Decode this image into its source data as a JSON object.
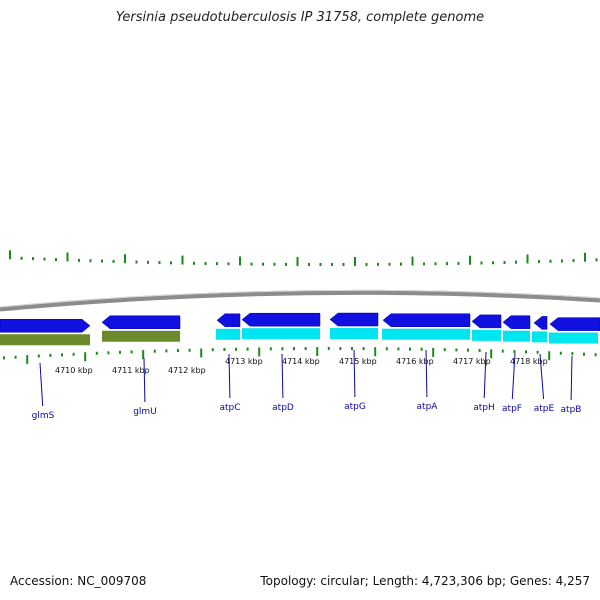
{
  "title": "Yersinia pseudotuberculosis IP 31758, complete genome",
  "footer": {
    "accession": "Accession: NC_009708",
    "summary": "Topology: circular; Length: 4,723,306 bp; Genes: 4,257"
  },
  "colors": {
    "backbone": "#8c8c8c",
    "forward_gene": "#1010e0",
    "reverse_gene": "#00e6f0",
    "reverse_gene_olive": "#6b8a2c",
    "tick": "#1a8a1a",
    "gene_label": "#0a0a99",
    "scale_label": "#111111"
  },
  "scale_labels": [
    "4710 kbp",
    "4711 kbp",
    "4712 kbp",
    "4713 kbp",
    "4714 kbp",
    "4715 kbp",
    "4716 kbp",
    "4717 kbp",
    "4718 kbp"
  ],
  "genes": [
    {
      "name": "glmS",
      "strand": "+",
      "color": "forward_gene"
    },
    {
      "name": "glmU",
      "strand": "+",
      "color": "forward_gene"
    },
    {
      "name": "atpC",
      "strand": "+",
      "color": "forward_gene"
    },
    {
      "name": "atpD",
      "strand": "+",
      "color": "forward_gene"
    },
    {
      "name": "atpG",
      "strand": "+",
      "color": "forward_gene"
    },
    {
      "name": "atpA",
      "strand": "+",
      "color": "forward_gene"
    },
    {
      "name": "atpH",
      "strand": "+",
      "color": "forward_gene"
    },
    {
      "name": "atpF",
      "strand": "+",
      "color": "forward_gene"
    },
    {
      "name": "atpE",
      "strand": "+",
      "color": "forward_gene"
    },
    {
      "name": "atpB",
      "strand": "+",
      "color": "forward_gene"
    }
  ]
}
